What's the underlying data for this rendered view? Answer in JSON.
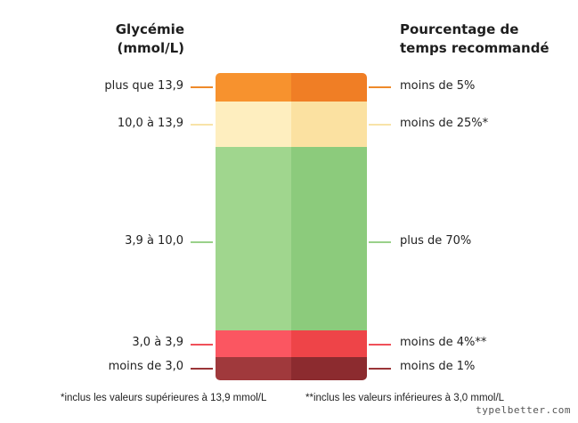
{
  "header": {
    "left": [
      "Glycémie",
      "(mmol/L)"
    ],
    "right": [
      "Pourcentage de",
      "temps recommandé"
    ]
  },
  "ranges": [
    {
      "glucose": "plus que 13,9",
      "time": "moins de 5%",
      "color_light": "#F7922E",
      "color_dark": "#F07E25",
      "tick": "#EE8A2A"
    },
    {
      "glucose": "10,0 à 13,9",
      "time": "moins de 25%*",
      "color_light": "#FEEEBF",
      "color_dark": "#FBE1A1",
      "tick": "#F8E3A8"
    },
    {
      "glucose": "3,9 à 10,0",
      "time": "plus de 70%",
      "color_light": "#A0D68E",
      "color_dark": "#8CCB7C",
      "tick": "#9AD18A"
    },
    {
      "glucose": "3,0 à 3,9",
      "time": "moins de 4%**",
      "color_light": "#FB5661",
      "color_dark": "#EE4448",
      "tick": "#F05059"
    },
    {
      "glucose": "moins de 3,0",
      "time": "moins de 1%",
      "color_light": "#A0393C",
      "color_dark": "#8C2B2F",
      "tick": "#9A3538"
    }
  ],
  "footnotes": {
    "one": "*inclus les valeurs supérieures à 13,9 mmol/L",
    "two": "**inclus les valeurs inférieures à 3,0 mmol/L"
  },
  "watermark": "typelbetter.com"
}
